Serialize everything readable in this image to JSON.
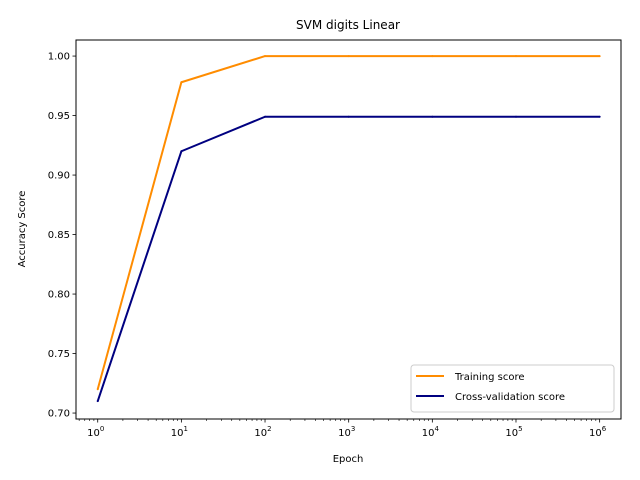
{
  "chart_data": {
    "type": "line",
    "title": "SVM digits Linear",
    "xlabel": "Epoch",
    "ylabel": "Accuracy Score",
    "xscale": "log",
    "xlim": [
      0.55,
      1800000
    ],
    "ylim": [
      0.695,
      1.0135
    ],
    "x": [
      1,
      10,
      100,
      1000,
      10000,
      100000,
      1000000
    ],
    "x_ticks": [
      {
        "value": 1,
        "base": "10",
        "exp": "0"
      },
      {
        "value": 10,
        "base": "10",
        "exp": "1"
      },
      {
        "value": 100,
        "base": "10",
        "exp": "2"
      },
      {
        "value": 1000,
        "base": "10",
        "exp": "3"
      },
      {
        "value": 10000,
        "base": "10",
        "exp": "4"
      },
      {
        "value": 100000,
        "base": "10",
        "exp": "5"
      },
      {
        "value": 1000000,
        "base": "10",
        "exp": "6"
      }
    ],
    "y_ticks": [
      {
        "value": 0.7,
        "label": "0.70"
      },
      {
        "value": 0.75,
        "label": "0.75"
      },
      {
        "value": 0.8,
        "label": "0.80"
      },
      {
        "value": 0.85,
        "label": "0.85"
      },
      {
        "value": 0.9,
        "label": "0.90"
      },
      {
        "value": 0.95,
        "label": "0.95"
      },
      {
        "value": 1.0,
        "label": "1.00"
      }
    ],
    "grid": false,
    "legend_position": "lower-right",
    "series": [
      {
        "name": "Training score",
        "color": "#ff8c00",
        "values": [
          0.72,
          0.978,
          1.0,
          1.0,
          1.0,
          1.0,
          1.0
        ]
      },
      {
        "name": "Cross-validation score",
        "color": "#000080",
        "values": [
          0.71,
          0.92,
          0.949,
          0.949,
          0.949,
          0.949,
          0.949
        ]
      }
    ]
  }
}
